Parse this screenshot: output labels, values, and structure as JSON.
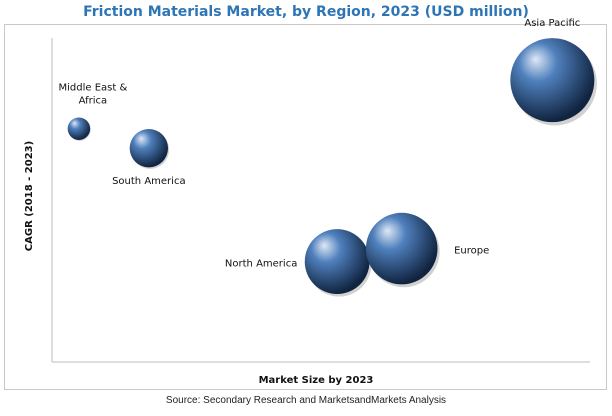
{
  "title": "Friction Materials Market, by Region, 2023 (USD million)",
  "source": "Source: Secondary Research and MarketsandMarkets Analysis",
  "chart_data": {
    "type": "bubble",
    "xlabel": "Market Size by 2023",
    "ylabel": "CAGR (2018 - 2023)",
    "grid": false,
    "legend": "none",
    "axis_ticks": "none",
    "points": [
      {
        "label_lines": [
          "Middle East &",
          "Africa"
        ],
        "x": 0.05,
        "y": 0.72,
        "size": 0.12
      },
      {
        "label_lines": [
          "South America"
        ],
        "x": 0.18,
        "y": 0.66,
        "size": 0.35
      },
      {
        "label_lines": [
          "North America"
        ],
        "x": 0.53,
        "y": 0.31,
        "size": 1.0
      },
      {
        "label_lines": [
          "Europe"
        ],
        "x": 0.65,
        "y": 0.35,
        "size": 1.22
      },
      {
        "label_lines": [
          "Asia Pacific"
        ],
        "x": 0.93,
        "y": 0.87,
        "size": 1.68
      }
    ],
    "bubble_colors": {
      "highlight": "#dfe8f5",
      "base": "#4f80bd",
      "shadow": "#10233f"
    }
  }
}
